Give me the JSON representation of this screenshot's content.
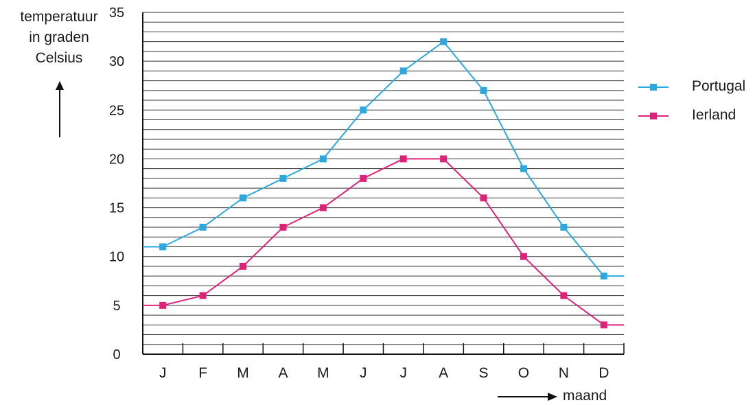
{
  "chart_data": {
    "type": "line",
    "ylabel": "temperatuur in graden Celsius",
    "ylabel_lines": [
      "temperatuur",
      "in graden",
      "Celsius"
    ],
    "xlabel": "maand",
    "categories": [
      "J",
      "F",
      "M",
      "A",
      "M",
      "J",
      "J",
      "A",
      "S",
      "O",
      "N",
      "D"
    ],
    "ylim": [
      0,
      35
    ],
    "yticks": [
      0,
      5,
      10,
      15,
      20,
      25,
      30,
      35
    ],
    "grid": true,
    "legend_position": "right",
    "series": [
      {
        "name": "Portugal",
        "color": "#2ba8e0",
        "values": [
          11,
          13,
          16,
          18,
          20,
          25,
          29,
          32,
          27,
          19,
          13,
          8
        ]
      },
      {
        "name": "Ierland",
        "color": "#e0217a",
        "values": [
          5,
          6,
          9,
          13,
          15,
          18,
          20,
          20,
          16,
          10,
          6,
          3
        ]
      }
    ]
  }
}
